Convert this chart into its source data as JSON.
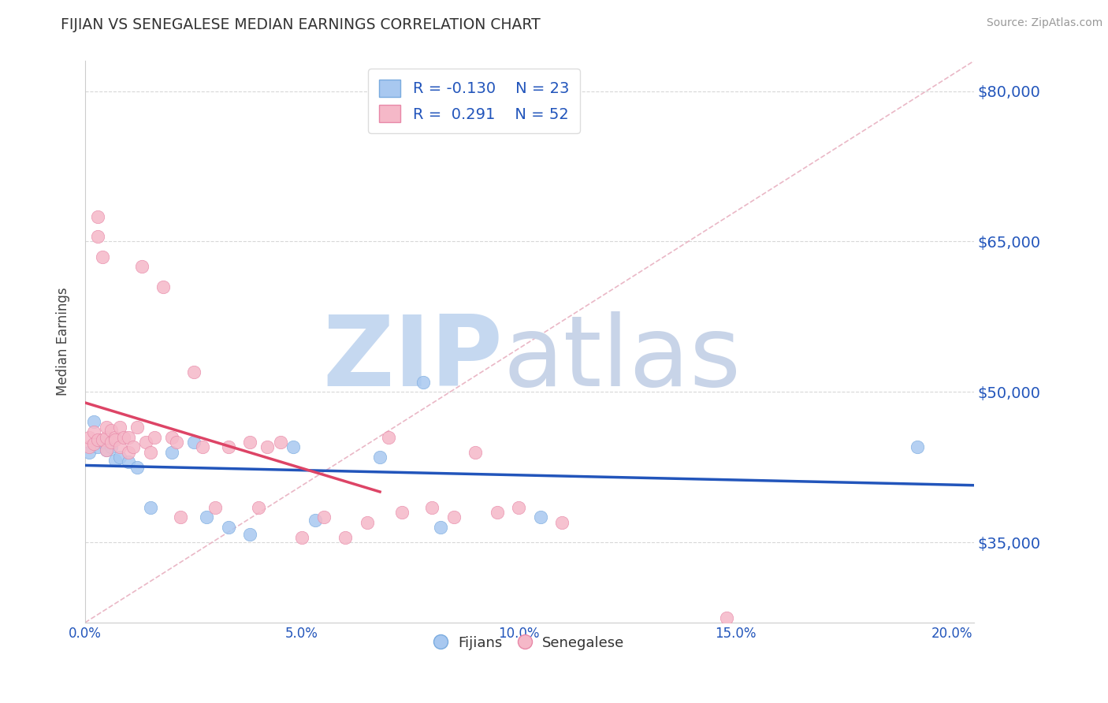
{
  "title": "FIJIAN VS SENEGALESE MEDIAN EARNINGS CORRELATION CHART",
  "source_text": "Source: ZipAtlas.com",
  "ylabel": "Median Earnings",
  "xlim": [
    0.0,
    0.205
  ],
  "ylim": [
    27000,
    83000
  ],
  "yticks": [
    35000,
    50000,
    65000,
    80000
  ],
  "ytick_labels": [
    "$35,000",
    "$50,000",
    "$65,000",
    "$80,000"
  ],
  "xticks": [
    0.0,
    0.05,
    0.1,
    0.15,
    0.2
  ],
  "xtick_labels": [
    "0.0%",
    "5.0%",
    "10.0%",
    "15.0%",
    "20.0%"
  ],
  "fijian_color": "#a8c8f0",
  "fijian_edge_color": "#7aabdf",
  "senegalese_color": "#f5b8c8",
  "senegalese_edge_color": "#e888a8",
  "fijian_line_color": "#2255bb",
  "senegalese_line_color": "#dd4466",
  "diagonal_color": "#e8b0c0",
  "grid_color": "#d8d8d8",
  "legend_R_fijian": "-0.130",
  "legend_N_fijian": "23",
  "legend_R_senegalese": "0.291",
  "legend_N_senegalese": "52",
  "legend_text_color": "#2255bb",
  "axis_tick_color": "#2255bb",
  "ylabel_color": "#444444",
  "watermark_zip_color": "#c5d8f0",
  "watermark_atlas_color": "#c8d4e8",
  "fijian_x": [
    0.001,
    0.002,
    0.003,
    0.004,
    0.005,
    0.006,
    0.007,
    0.008,
    0.01,
    0.012,
    0.015,
    0.02,
    0.025,
    0.028,
    0.033,
    0.038,
    0.048,
    0.053,
    0.068,
    0.078,
    0.082,
    0.105,
    0.192
  ],
  "fijian_y": [
    44000,
    47000,
    44500,
    45000,
    44200,
    44500,
    43200,
    43500,
    43000,
    42500,
    38500,
    44000,
    45000,
    37500,
    36500,
    35800,
    44500,
    37200,
    43500,
    51000,
    36500,
    37500,
    44500
  ],
  "senegalese_x": [
    0.001,
    0.001,
    0.002,
    0.002,
    0.003,
    0.003,
    0.003,
    0.004,
    0.004,
    0.005,
    0.005,
    0.005,
    0.006,
    0.006,
    0.007,
    0.007,
    0.008,
    0.008,
    0.009,
    0.01,
    0.01,
    0.011,
    0.012,
    0.013,
    0.014,
    0.015,
    0.016,
    0.018,
    0.02,
    0.021,
    0.022,
    0.025,
    0.027,
    0.03,
    0.033,
    0.038,
    0.04,
    0.042,
    0.045,
    0.05,
    0.055,
    0.06,
    0.065,
    0.07,
    0.073,
    0.08,
    0.085,
    0.09,
    0.095,
    0.1,
    0.11,
    0.148
  ],
  "senegalese_y": [
    44500,
    45500,
    44800,
    46000,
    45200,
    65500,
    67500,
    45200,
    63500,
    44200,
    45500,
    46500,
    45000,
    46200,
    45500,
    45200,
    44500,
    46500,
    45500,
    44000,
    45500,
    44500,
    46500,
    62500,
    45000,
    44000,
    45500,
    60500,
    45500,
    45000,
    37500,
    52000,
    44500,
    38500,
    44500,
    45000,
    38500,
    44500,
    45000,
    35500,
    37500,
    35500,
    37000,
    45500,
    38000,
    38500,
    37500,
    44000,
    38000,
    38500,
    37000,
    27500
  ],
  "sen_trend_x_start": 0.0,
  "sen_trend_x_end": 0.068,
  "fij_trend_x_start": 0.0,
  "fij_trend_x_end": 0.205
}
